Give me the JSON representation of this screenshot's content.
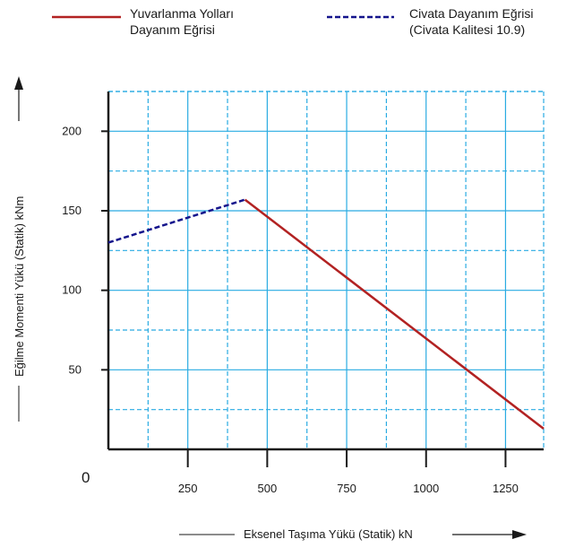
{
  "legend": [
    {
      "line1": "Yuvarlanma Yolları",
      "line2": "Dayanım Eğrisi",
      "color": "#b22222",
      "dash": false
    },
    {
      "line1": "Civata Dayanım Eğrisi",
      "line2": "(Civata Kalitesi 10.9)",
      "color": "#14148c",
      "dash": true
    }
  ],
  "chart_data": {
    "type": "line",
    "xlabel": "Eksenel Taşıma Yükü (Statik) kN",
    "ylabel": "Eğilme Momenti Yükü (Statik) kNm",
    "origin_label": "0",
    "xlim": [
      0,
      1370
    ],
    "ylim": [
      0,
      225
    ],
    "x_ticks": [
      250,
      500,
      750,
      1000,
      1250
    ],
    "x_tick_labels": [
      "250",
      "500",
      "750",
      "1000",
      "1250"
    ],
    "y_ticks": [
      50,
      100,
      150,
      200
    ],
    "y_tick_labels": [
      "50",
      "100",
      "150",
      "200"
    ],
    "grid": true,
    "grid_color": "#29abe2",
    "series": [
      {
        "name": "Civata Dayanım Eğrisi",
        "color": "#14148c",
        "dash": true,
        "x": [
          0,
          430
        ],
        "y": [
          130,
          157
        ]
      },
      {
        "name": "Yuvarlanma Yolları Dayanım Eğrisi",
        "color": "#b22222",
        "dash": false,
        "x": [
          430,
          1370
        ],
        "y": [
          157,
          13
        ]
      }
    ]
  }
}
